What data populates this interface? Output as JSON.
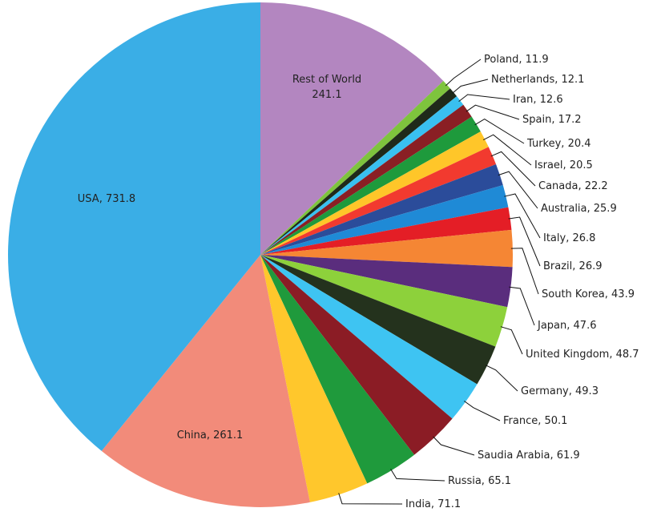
{
  "chart_data": {
    "type": "pie",
    "title": "",
    "slices": [
      {
        "label": "Rest of World",
        "value": 241.1,
        "text": "Rest of World\n241.1",
        "color": "#b386c0"
      },
      {
        "label": "Poland",
        "value": 11.9,
        "text": "Poland, 11.9",
        "color": "#7ec43d"
      },
      {
        "label": "Netherlands",
        "value": 12.1,
        "text": "Netherlands, 12.1",
        "color": "#1f2a1a"
      },
      {
        "label": "Iran",
        "value": 12.6,
        "text": "Iran, 12.6",
        "color": "#39c0f0"
      },
      {
        "label": "Spain",
        "value": 17.2,
        "text": "Spain, 17.2",
        "color": "#8a1f24"
      },
      {
        "label": "Turkey",
        "value": 20.4,
        "text": "Turkey, 20.4",
        "color": "#1e9a3c"
      },
      {
        "label": "Israel",
        "value": 20.5,
        "text": "Israel, 20.5",
        "color": "#ffc629"
      },
      {
        "label": "Canada",
        "value": 22.2,
        "text": "Canada, 22.2",
        "color": "#f23a2f"
      },
      {
        "label": "Australia",
        "value": 25.9,
        "text": "Australia, 25.9",
        "color": "#2b4c9a"
      },
      {
        "label": "Italy",
        "value": 26.8,
        "text": "Italy, 26.8",
        "color": "#1f8ad6"
      },
      {
        "label": "Brazil",
        "value": 26.9,
        "text": "Brazil, 26.9",
        "color": "#e41e26"
      },
      {
        "label": "South Korea",
        "value": 43.9,
        "text": "South Korea, 43.9",
        "color": "#f58634"
      },
      {
        "label": "Japan",
        "value": 47.6,
        "text": "Japan, 47.6",
        "color": "#5a2d7d"
      },
      {
        "label": "United Kingdom",
        "value": 48.7,
        "text": "United Kingdom, 48.7",
        "color": "#8dd13b"
      },
      {
        "label": "Germany",
        "value": 49.3,
        "text": "Germany, 49.3",
        "color": "#24321d"
      },
      {
        "label": "France",
        "value": 50.1,
        "text": "France, 50.1",
        "color": "#3ec4f2"
      },
      {
        "label": "Saudia Arabia",
        "value": 61.9,
        "text": "Saudia Arabia, 61.9",
        "color": "#8b1c25"
      },
      {
        "label": "Russia",
        "value": 65.1,
        "text": "Russia, 65.1",
        "color": "#1f9a3c"
      },
      {
        "label": "India",
        "value": 71.1,
        "text": "India, 71.1",
        "color": "#ffc72c"
      },
      {
        "label": "China",
        "value": 261.1,
        "text": "China, 261.1",
        "color": "#f28b7a"
      },
      {
        "label": "USA",
        "value": 731.8,
        "text": "USA, 731.8",
        "color": "#3aaee6"
      }
    ]
  }
}
